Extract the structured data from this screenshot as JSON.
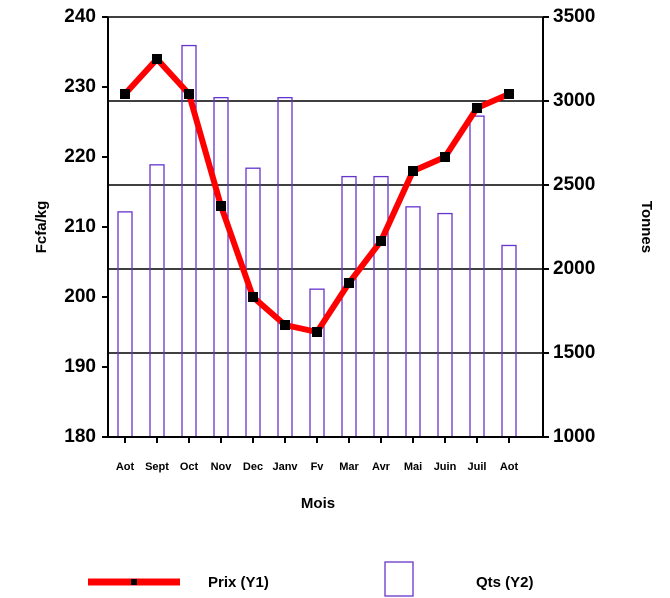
{
  "chart_data": {
    "type": "bar-line",
    "x_label": "Mois",
    "y_label": "Fcfa/kg",
    "y2_label": "Tonnes",
    "categories": [
      "Aot",
      "Sept",
      "Oct",
      "Nov",
      "Dec",
      "Janv",
      "Fv",
      "Mar",
      "Avr",
      "Mai",
      "Juin",
      "Juil",
      "Aot"
    ],
    "series": [
      {
        "name": "Prix (Y1)",
        "color": "#ff0000",
        "marker_color": "#000000",
        "type": "line",
        "values": [
          229,
          234,
          229,
          213,
          200,
          196,
          195,
          202,
          208,
          218,
          220,
          227,
          229
        ]
      },
      {
        "name": "Qts (Y2)",
        "color": "#6633cc",
        "type": "bar",
        "axis": "y2",
        "values": [
          2340,
          2620,
          3330,
          3020,
          2600,
          3020,
          1880,
          2550,
          2550,
          2370,
          2330,
          2910,
          2140
        ]
      }
    ],
    "ylim": [
      180,
      240
    ],
    "yticks": [
      180,
      190,
      200,
      210,
      220,
      230,
      240
    ],
    "y2lim": [
      1000,
      3500
    ],
    "y2ticks": [
      1000,
      1500,
      2000,
      2500,
      3000,
      3500
    ],
    "grid": true
  }
}
